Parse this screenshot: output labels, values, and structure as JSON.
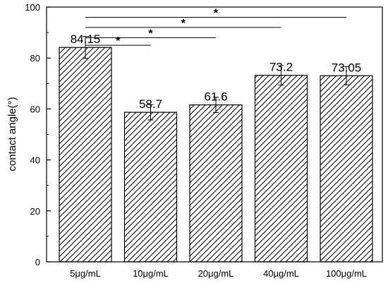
{
  "chart_data": {
    "type": "bar",
    "categories": [
      "5μg/mL",
      "10μg/mL",
      "20μg/mL",
      "40μg/mL",
      "100μg/mL"
    ],
    "values": [
      84.15,
      58.7,
      61.6,
      73.2,
      73.05
    ],
    "value_labels": [
      "84.15",
      "58.7",
      "61.6",
      "73.2",
      "73.05"
    ],
    "error": [
      4.3,
      3.0,
      3.0,
      3.8,
      3.6
    ],
    "title": "",
    "xlabel": "",
    "ylabel": "contact angle(°)",
    "ylim": [
      0,
      100
    ],
    "yticks": [
      0,
      20,
      40,
      60,
      80,
      100
    ],
    "grid": false,
    "bar_fill": "diagonal-hatch",
    "bar_color": "#000000",
    "significance": [
      {
        "from": "5μg/mL",
        "to": "10μg/mL",
        "y": 85,
        "label": "*"
      },
      {
        "from": "5μg/mL",
        "to": "20μg/mL",
        "y": 88,
        "label": "*"
      },
      {
        "from": "5μg/mL",
        "to": "40μg/mL",
        "y": 92,
        "label": "*"
      },
      {
        "from": "5μg/mL",
        "to": "100μg/mL",
        "y": 96,
        "label": "*"
      }
    ]
  }
}
